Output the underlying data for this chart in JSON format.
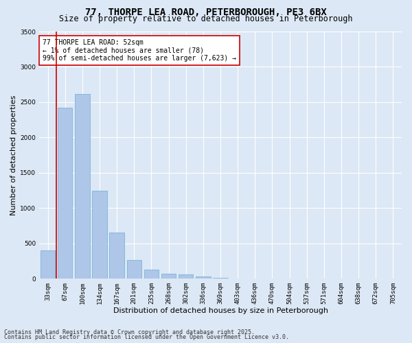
{
  "title_line1": "77, THORPE LEA ROAD, PETERBOROUGH, PE3 6BX",
  "title_line2": "Size of property relative to detached houses in Peterborough",
  "xlabel": "Distribution of detached houses by size in Peterborough",
  "ylabel": "Number of detached properties",
  "categories": [
    "33sqm",
    "67sqm",
    "100sqm",
    "134sqm",
    "167sqm",
    "201sqm",
    "235sqm",
    "268sqm",
    "302sqm",
    "336sqm",
    "369sqm",
    "403sqm",
    "436sqm",
    "470sqm",
    "504sqm",
    "537sqm",
    "571sqm",
    "604sqm",
    "638sqm",
    "672sqm",
    "705sqm"
  ],
  "values": [
    400,
    2420,
    2620,
    1250,
    650,
    260,
    130,
    70,
    60,
    30,
    10,
    5,
    0,
    0,
    0,
    0,
    0,
    0,
    0,
    0,
    0
  ],
  "bar_color": "#aec6e8",
  "bar_edge_color": "#6aaed6",
  "vline_color": "#cc0000",
  "vline_x": 0.5,
  "annotation_text": "77 THORPE LEA ROAD: 52sqm\n← 1% of detached houses are smaller (78)\n99% of semi-detached houses are larger (7,623) →",
  "annotation_box_color": "#ffffff",
  "annotation_box_edge": "#cc0000",
  "ylim": [
    0,
    3500
  ],
  "yticks": [
    0,
    500,
    1000,
    1500,
    2000,
    2500,
    3000,
    3500
  ],
  "bg_color": "#dce8f5",
  "plot_bg_color": "#dce8f5",
  "footer_line1": "Contains HM Land Registry data © Crown copyright and database right 2025.",
  "footer_line2": "Contains public sector information licensed under the Open Government Licence v3.0.",
  "title_fontsize": 10,
  "subtitle_fontsize": 8.5,
  "axis_label_fontsize": 8,
  "tick_fontsize": 6.5,
  "annotation_fontsize": 7,
  "footer_fontsize": 6
}
